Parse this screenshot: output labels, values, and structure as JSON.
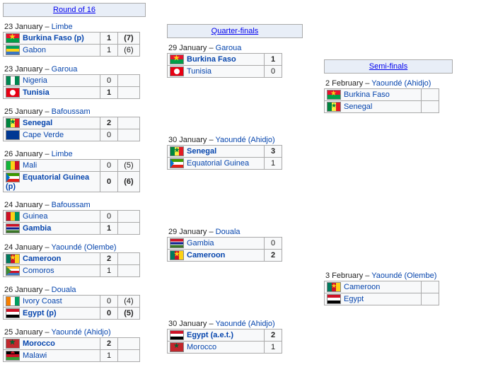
{
  "col": [
    {
      "title": "Round of 16",
      "matches": [
        {
          "date": "23 January",
          "venue": "Limbe",
          "t": [
            {
              "f": "bfa",
              "n": "Burkina Faso (p)",
              "s": "1",
              "p": "(7)",
              "w": 1
            },
            {
              "f": "gab",
              "n": "Gabon",
              "s": "1",
              "p": "(6)"
            }
          ]
        },
        {
          "date": "23 January",
          "venue": "Garoua",
          "t": [
            {
              "f": "nga",
              "n": "Nigeria",
              "s": "0"
            },
            {
              "f": "tun",
              "n": "Tunisia",
              "s": "1",
              "w": 1
            }
          ]
        },
        {
          "date": "25 January",
          "venue": "Bafoussam",
          "t": [
            {
              "f": "sen",
              "n": "Senegal",
              "s": "2",
              "w": 1
            },
            {
              "f": "cpv",
              "n": "Cape Verde",
              "s": "0"
            }
          ]
        },
        {
          "date": "26 January",
          "venue": "Limbe",
          "t": [
            {
              "f": "mli",
              "n": "Mali",
              "s": "0",
              "p": "(5)"
            },
            {
              "f": "eqg",
              "n": "Equatorial Guinea (p)",
              "s": "0",
              "p": "(6)",
              "w": 1
            }
          ]
        },
        {
          "date": "24 January",
          "venue": "Bafoussam",
          "t": [
            {
              "f": "gin",
              "n": "Guinea",
              "s": "0"
            },
            {
              "f": "gam",
              "n": "Gambia",
              "s": "1",
              "w": 1
            }
          ]
        },
        {
          "date": "24 January",
          "venue": "Yaoundé (Olembe)",
          "t": [
            {
              "f": "cmr",
              "n": "Cameroon",
              "s": "2",
              "w": 1
            },
            {
              "f": "com",
              "n": "Comoros",
              "s": "1"
            }
          ]
        },
        {
          "date": "26 January",
          "venue": "Douala",
          "t": [
            {
              "f": "civ",
              "n": "Ivory Coast",
              "s": "0",
              "p": "(4)"
            },
            {
              "f": "egy",
              "n": "Egypt (p)",
              "s": "0",
              "p": "(5)",
              "w": 1
            }
          ]
        },
        {
          "date": "25 January",
          "venue": "Yaoundé (Ahidjo)",
          "t": [
            {
              "f": "mar",
              "n": "Morocco",
              "s": "2",
              "w": 1
            },
            {
              "f": "mwi",
              "n": "Malawi",
              "s": "1"
            }
          ]
        }
      ]
    },
    {
      "title": "Quarter-finals",
      "matches": [
        {
          "date": "29 January",
          "venue": "Garoua",
          "t": [
            {
              "f": "bfa",
              "n": "Burkina Faso",
              "s": "1",
              "w": 1
            },
            {
              "f": "tun",
              "n": "Tunisia",
              "s": "0"
            }
          ]
        },
        {
          "date": "30 January",
          "venue": "Yaoundé (Ahidjo)",
          "t": [
            {
              "f": "sen",
              "n": "Senegal",
              "s": "3",
              "w": 1
            },
            {
              "f": "eqg",
              "n": "Equatorial Guinea",
              "s": "1"
            }
          ]
        },
        {
          "date": "29 January",
          "venue": "Douala",
          "t": [
            {
              "f": "gam",
              "n": "Gambia",
              "s": "0"
            },
            {
              "f": "cmr",
              "n": "Cameroon",
              "s": "2",
              "w": 1
            }
          ]
        },
        {
          "date": "30 January",
          "venue": "Yaoundé (Ahidjo)",
          "t": [
            {
              "f": "egy",
              "n": "Egypt (a.e.t.)",
              "s": "2",
              "w": 1
            },
            {
              "f": "mar",
              "n": "Morocco",
              "s": "1"
            }
          ]
        }
      ]
    },
    {
      "title": "Semi-finals",
      "matches": [
        {
          "date": "2 February",
          "venue": "Yaoundé (Ahidjo)",
          "t": [
            {
              "f": "bfa",
              "n": "Burkina Faso",
              "s": ""
            },
            {
              "f": "sen",
              "n": "Senegal",
              "s": ""
            }
          ]
        },
        {
          "date": "3 February",
          "venue": "Yaoundé (Olembe)",
          "t": [
            {
              "f": "cmr",
              "n": "Cameroon",
              "s": ""
            },
            {
              "f": "egy",
              "n": "Egypt",
              "s": ""
            }
          ]
        }
      ]
    }
  ]
}
